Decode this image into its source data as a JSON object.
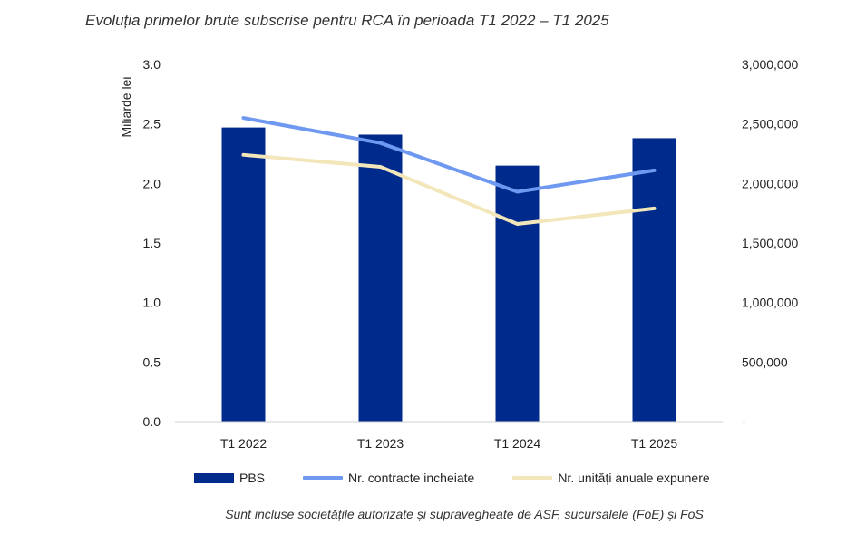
{
  "chart_data": {
    "type": "bar",
    "title": "Evoluția primelor brute subscrise pentru RCA în perioada T1 2022 – T1 2025",
    "categories": [
      "T1 2022",
      "T1 2023",
      "T1 2024",
      "T1 2025"
    ],
    "ylabel": "Miliarde lei",
    "ylim": [
      0,
      3.0
    ],
    "yticks": [
      "0.0",
      "0.5",
      "1.0",
      "1.5",
      "2.0",
      "2.5",
      "3.0"
    ],
    "y2lim": [
      0,
      3000000
    ],
    "y2ticks": [
      "-",
      "500,000",
      "1,000,000",
      "1,500,000",
      "2,000,000",
      "2,500,000",
      "3,000,000"
    ],
    "series": [
      {
        "name": "PBS",
        "type": "bar",
        "axis": "left",
        "color": "#002B8C",
        "values": [
          2.47,
          2.41,
          2.15,
          2.38
        ]
      },
      {
        "name": "Nr. contracte incheiate",
        "type": "line",
        "axis": "right",
        "color": "#6F98F0",
        "values": [
          2550000,
          2340000,
          1930000,
          2110000
        ]
      },
      {
        "name": "Nr. unități anuale expunere",
        "type": "line",
        "axis": "right",
        "color": "#F2E6BA",
        "values": [
          2240000,
          2140000,
          1660000,
          1790000
        ]
      }
    ],
    "legend_position": "bottom",
    "footnote": "Sunt incluse societățile autorizate și supravegheate de ASF, sucursalele (FoE) și FoS"
  }
}
